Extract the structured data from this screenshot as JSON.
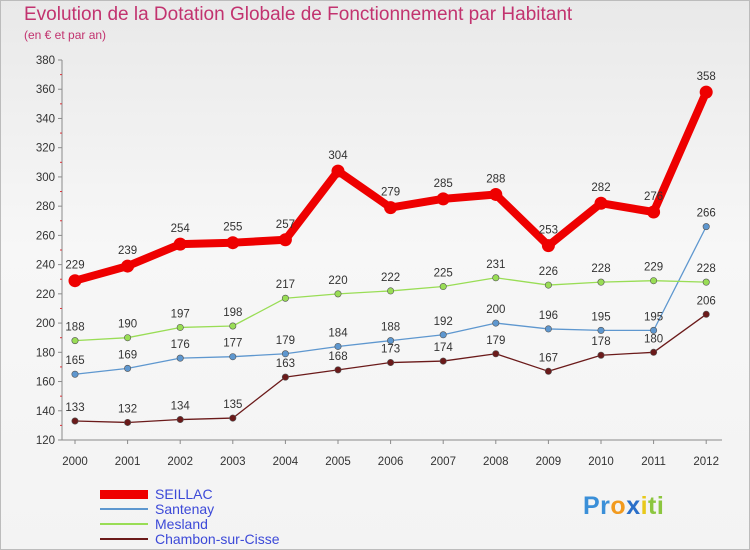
{
  "chart_data": {
    "type": "line",
    "title": "Evolution de la Dotation Globale de Fonctionnement par Habitant",
    "subtitle": "(en € et par an)",
    "xlabel": "",
    "ylabel": "",
    "ylim": [
      120,
      380
    ],
    "yticks": [
      "120",
      "140",
      "160",
      "180",
      "200",
      "220",
      "240",
      "260",
      "280",
      "300",
      "320",
      "340",
      "360",
      "380"
    ],
    "categories": [
      "2000",
      "2001",
      "2002",
      "2003",
      "2004",
      "2005",
      "2006",
      "2007",
      "2008",
      "2009",
      "2010",
      "2011",
      "2012"
    ],
    "series": [
      {
        "name": "SEILLAC",
        "color": "#ee0000",
        "values": [
          229,
          239,
          254,
          255,
          257,
          304,
          279,
          285,
          288,
          253,
          282,
          276,
          358
        ]
      },
      {
        "name": "Santenay",
        "color": "#5e97cf",
        "values": [
          165,
          169,
          176,
          177,
          179,
          184,
          188,
          192,
          200,
          196,
          195,
          195,
          266
        ]
      },
      {
        "name": "Mesland",
        "color": "#99dd55",
        "values": [
          188,
          190,
          197,
          198,
          217,
          220,
          222,
          225,
          231,
          226,
          228,
          229,
          228
        ]
      },
      {
        "name": "Chambon-sur-Cisse",
        "color": "#6b1a1a",
        "values": [
          133,
          132,
          134,
          135,
          163,
          168,
          173,
          174,
          179,
          167,
          178,
          180,
          206
        ]
      }
    ],
    "labels": [
      [
        "229",
        "239",
        "254",
        "255",
        "257",
        "304",
        "279",
        "285",
        "288",
        "253",
        "282",
        "276",
        "358"
      ],
      [
        "165",
        "169",
        "176",
        "177",
        "179",
        "184",
        "188",
        "192",
        "200",
        "196",
        "195",
        "195",
        "266"
      ],
      [
        "188",
        "190",
        "197",
        "198",
        "217",
        "220",
        "222",
        "225",
        "231",
        "226",
        "228",
        "229",
        "228"
      ],
      [
        "133",
        "132",
        "134",
        "135",
        "163",
        "168",
        "173",
        "174",
        "179",
        "167",
        "178",
        "180",
        "206"
      ]
    ],
    "legend_position": "bottom-left",
    "grid": false
  },
  "legend": {
    "items": [
      {
        "label": "SEILLAC",
        "color": "#ee0000"
      },
      {
        "label": "Santenay",
        "color": "#5e97cf"
      },
      {
        "label": "Mesland",
        "color": "#99dd55"
      },
      {
        "label": "Chambon-sur-Cisse",
        "color": "#6b1a1a"
      }
    ]
  },
  "logo": {
    "p1": "Pr",
    "p2": "o",
    "p3": "x",
    "p4": "i",
    "p5": "ti"
  }
}
